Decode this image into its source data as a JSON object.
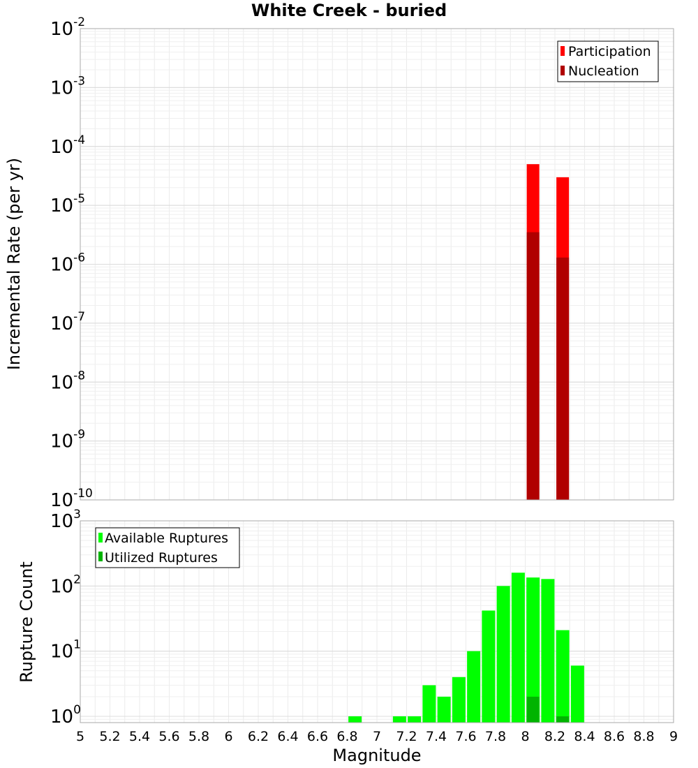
{
  "chart_data": [
    {
      "type": "bar",
      "title": "White Creek - buried",
      "ylabel": "Incremental Rate (per yr)",
      "yscale": "log",
      "ylim": [
        1e-10,
        0.01
      ],
      "ytick_exponents": [
        "-10",
        "-9",
        "-8",
        "-7",
        "-6",
        "-5",
        "-4",
        "-3",
        "-2"
      ],
      "xlim": [
        5,
        9
      ],
      "grid": true,
      "legend_position": "top-right",
      "series": [
        {
          "name": "Participation",
          "color": "#ff0000",
          "x": [
            8.05,
            8.25
          ],
          "values": [
            5e-05,
            3e-05
          ]
        },
        {
          "name": "Nucleation",
          "color": "#b00000",
          "x": [
            8.05,
            8.25
          ],
          "values": [
            3.5e-06,
            1.3e-06
          ]
        }
      ]
    },
    {
      "type": "bar",
      "ylabel": "Rupture Count",
      "xlabel": "Magnitude",
      "yscale": "log",
      "ylim": [
        0.8,
        1000
      ],
      "ytick_exponents": [
        "0",
        "1",
        "2",
        "3"
      ],
      "xlim": [
        5,
        9
      ],
      "x_ticks": [
        "5",
        "5.2",
        "5.4",
        "5.6",
        "5.8",
        "6",
        "6.2",
        "6.4",
        "6.6",
        "6.8",
        "7",
        "7.2",
        "7.4",
        "7.6",
        "7.8",
        "8",
        "8.2",
        "8.4",
        "8.6",
        "8.8",
        "9"
      ],
      "grid": true,
      "legend_position": "top-left",
      "series": [
        {
          "name": "Available Ruptures",
          "color": "#00ff00",
          "x": [
            6.85,
            7.15,
            7.25,
            7.35,
            7.45,
            7.55,
            7.65,
            7.75,
            7.85,
            7.95,
            8.05,
            8.15,
            8.25,
            8.35
          ],
          "values": [
            1,
            1,
            1,
            3,
            2,
            4,
            10,
            42,
            100,
            160,
            135,
            128,
            21,
            6
          ]
        },
        {
          "name": "Utilized Ruptures",
          "color": "#00b400",
          "x": [
            8.05,
            8.25
          ],
          "values": [
            2,
            1
          ]
        }
      ]
    }
  ]
}
